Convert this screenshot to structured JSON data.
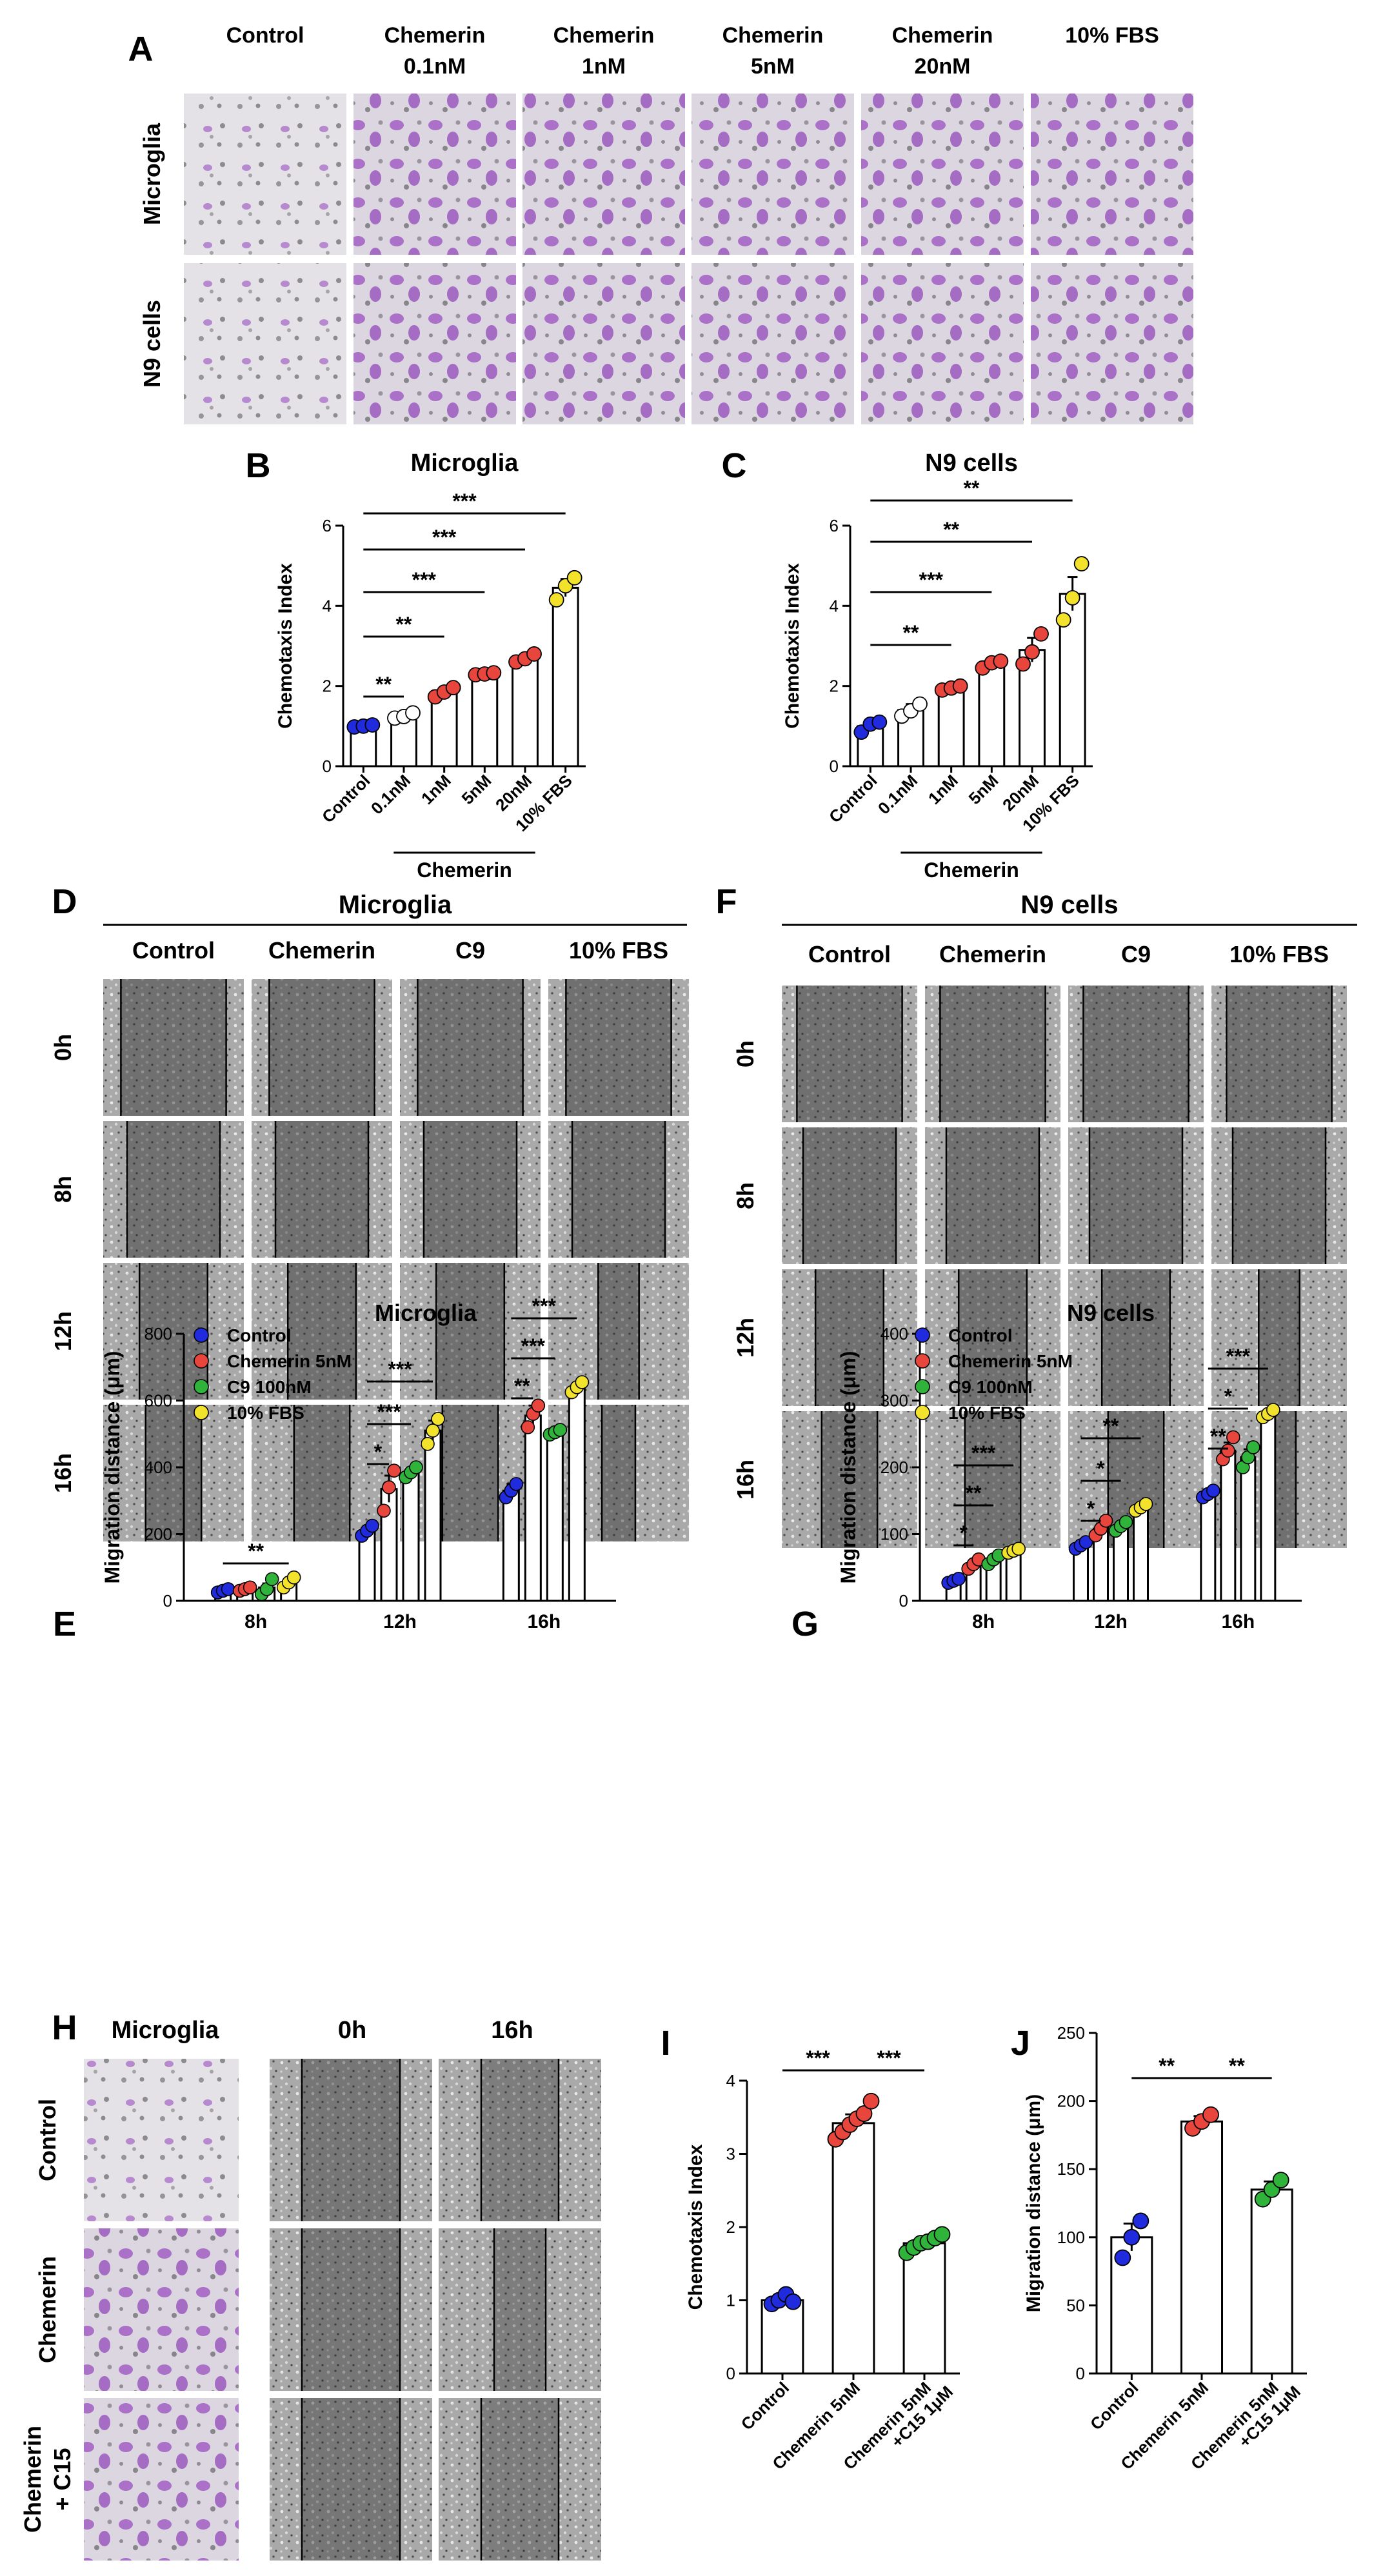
{
  "panels": {
    "A": {
      "letter": "A",
      "columns": [
        "Control",
        "Chemerin 0.1nM",
        "Chemerin 1nM",
        "Chemerin 5nM",
        "Chemerin 20nM",
        "10% FBS"
      ],
      "column_line1": [
        "Control",
        "Chemerin",
        "Chemerin",
        "Chemerin",
        "Chemerin",
        "10% FBS"
      ],
      "column_line2": [
        "",
        "0.1nM",
        "1nM",
        "5nM",
        "20nM",
        ""
      ],
      "rows": [
        "Microglia",
        "N9 cells"
      ]
    },
    "D": {
      "letter": "D",
      "title": "Microglia",
      "columns": [
        "Control",
        "Chemerin",
        "C9",
        "10% FBS"
      ],
      "rows": [
        "0h",
        "8h",
        "12h",
        "16h"
      ]
    },
    "F": {
      "letter": "F",
      "title": "N9 cells",
      "columns": [
        "Control",
        "Chemerin",
        "C9",
        "10% FBS"
      ],
      "rows": [
        "0h",
        "8h",
        "12h",
        "16h"
      ]
    },
    "H": {
      "letter": "H",
      "headers": [
        "Microglia",
        "0h",
        "16h"
      ],
      "rows": [
        "Control",
        "Chemerin",
        "Chemerin\n+ C15"
      ]
    }
  },
  "colors": {
    "blue": "#1f2bdc",
    "red": "#e8453c",
    "green": "#2fb33a",
    "yellow": "#f3e22c",
    "white": "#ffffff"
  },
  "chart_data": [
    {
      "id": "B",
      "letter": "B",
      "type": "bar",
      "title": "Microglia",
      "categories": [
        "Control",
        "0.1nM",
        "1nM",
        "5nM",
        "20nM",
        "10% FBS"
      ],
      "values": [
        1.0,
        1.25,
        1.85,
        2.3,
        2.7,
        4.45
      ],
      "errors": [
        0.05,
        0.06,
        0.12,
        0.04,
        0.1,
        0.22
      ],
      "points": [
        [
          0.98,
          1.0,
          1.03
        ],
        [
          1.2,
          1.24,
          1.33
        ],
        [
          1.73,
          1.85,
          1.96
        ],
        [
          2.28,
          2.3,
          2.33
        ],
        [
          2.6,
          2.68,
          2.8
        ],
        [
          4.15,
          4.5,
          4.7
        ]
      ],
      "point_colors": [
        "blue",
        "white",
        "red",
        "red",
        "red",
        "yellow"
      ],
      "ylabel": "Chemotaxis Index",
      "ylim": [
        0,
        6
      ],
      "yticks": [
        0,
        2,
        4,
        6
      ],
      "group_label": "Chemerin",
      "significance": [
        {
          "from": 0,
          "to": 1,
          "label": "**"
        },
        {
          "from": 0,
          "to": 2,
          "label": "**"
        },
        {
          "from": 0,
          "to": 3,
          "label": "***"
        },
        {
          "from": 0,
          "to": 4,
          "label": "***"
        },
        {
          "from": 0,
          "to": 5,
          "label": "***"
        }
      ]
    },
    {
      "id": "C",
      "letter": "C",
      "type": "bar",
      "title": "N9 cells",
      "categories": [
        "Control",
        "0.1nM",
        "1nM",
        "5nM",
        "20nM",
        "10% FBS"
      ],
      "values": [
        1.0,
        1.4,
        1.95,
        2.55,
        2.9,
        4.3
      ],
      "errors": [
        0.12,
        0.15,
        0.07,
        0.08,
        0.3,
        0.42
      ],
      "points": [
        [
          0.85,
          1.05,
          1.1
        ],
        [
          1.25,
          1.38,
          1.55
        ],
        [
          1.9,
          1.95,
          2.0
        ],
        [
          2.45,
          2.58,
          2.62
        ],
        [
          2.55,
          2.85,
          3.3
        ],
        [
          3.65,
          4.2,
          5.05
        ]
      ],
      "point_colors": [
        "blue",
        "white",
        "red",
        "red",
        "red",
        "yellow"
      ],
      "ylabel": "Chemotaxis Index",
      "ylim": [
        0,
        6
      ],
      "yticks": [
        0,
        2,
        4,
        6
      ],
      "group_label": "Chemerin",
      "significance": [
        {
          "from": 0,
          "to": 2,
          "label": "**"
        },
        {
          "from": 0,
          "to": 3,
          "label": "***"
        },
        {
          "from": 0,
          "to": 4,
          "label": "**"
        },
        {
          "from": 0,
          "to": 5,
          "label": "**"
        }
      ]
    },
    {
      "id": "E",
      "letter": "E",
      "type": "bar",
      "title": "Microglia",
      "categories": [
        "8h",
        "12h",
        "16h"
      ],
      "series": [
        {
          "name": "Control",
          "color": "blue",
          "values": [
            30,
            210,
            330
          ],
          "errors": [
            3,
            15,
            20
          ],
          "points": [
            [
              25,
              30,
              35
            ],
            [
              195,
              210,
              225
            ],
            [
              310,
              330,
              350
            ]
          ]
        },
        {
          "name": "Chemerin 5nM",
          "color": "red",
          "values": [
            35,
            335,
            555
          ],
          "errors": [
            5,
            40,
            30
          ],
          "points": [
            [
              30,
              35,
              40
            ],
            [
              270,
              340,
              390
            ],
            [
              520,
              560,
              585
            ]
          ]
        },
        {
          "name": "C9 100nM",
          "color": "green",
          "values": [
            40,
            385,
            505
          ],
          "errors": [
            12,
            12,
            6
          ],
          "points": [
            [
              20,
              35,
              65
            ],
            [
              370,
              385,
              400
            ],
            [
              498,
              505,
              512
            ]
          ]
        },
        {
          "name": "10% FBS",
          "color": "yellow",
          "values": [
            55,
            510,
            640
          ],
          "errors": [
            10,
            30,
            12
          ],
          "points": [
            [
              40,
              55,
              70
            ],
            [
              470,
              510,
              545
            ],
            [
              625,
              640,
              655
            ]
          ]
        }
      ],
      "ylabel": "Migration distance (μm)",
      "ylim": [
        0,
        800
      ],
      "yticks": [
        0,
        200,
        400,
        600,
        800
      ],
      "significance": [
        {
          "group": 0,
          "from": 0,
          "to": 3,
          "label": "**"
        },
        {
          "group": 1,
          "from": 0,
          "to": 1,
          "label": "*"
        },
        {
          "group": 1,
          "from": 0,
          "to": 2,
          "label": "***"
        },
        {
          "group": 1,
          "from": 0,
          "to": 3,
          "label": "***"
        },
        {
          "group": 2,
          "from": 0,
          "to": 1,
          "label": "**"
        },
        {
          "group": 2,
          "from": 0,
          "to": 2,
          "label": "***"
        },
        {
          "group": 2,
          "from": 0,
          "to": 3,
          "label": "***"
        }
      ]
    },
    {
      "id": "G",
      "letter": "G",
      "type": "bar",
      "title": "N9 cells",
      "categories": [
        "8h",
        "12h",
        "16h"
      ],
      "series": [
        {
          "name": "Control",
          "color": "blue",
          "values": [
            30,
            83,
            160
          ],
          "errors": [
            3,
            5,
            4
          ],
          "points": [
            [
              27,
              30,
              33
            ],
            [
              78,
              83,
              88
            ],
            [
              155,
              160,
              165
            ]
          ]
        },
        {
          "name": "Chemerin 5nM",
          "color": "red",
          "values": [
            55,
            108,
            225
          ],
          "errors": [
            5,
            8,
            12
          ],
          "points": [
            [
              48,
              55,
              62
            ],
            [
              98,
              108,
              120
            ],
            [
              212,
              225,
              245
            ]
          ]
        },
        {
          "name": "C9 100nM",
          "color": "green",
          "values": [
            62,
            112,
            215
          ],
          "errors": [
            5,
            5,
            12
          ],
          "points": [
            [
              55,
              62,
              68
            ],
            [
              105,
              112,
              118
            ],
            [
              200,
              215,
              230
            ]
          ]
        },
        {
          "name": "10% FBS",
          "color": "yellow",
          "values": [
            75,
            140,
            280
          ],
          "errors": [
            3,
            5,
            4
          ],
          "points": [
            [
              72,
              75,
              78
            ],
            [
              135,
              140,
              145
            ],
            [
              275,
              280,
              286
            ]
          ]
        }
      ],
      "ylabel": "Migration distance (μm)",
      "ylim": [
        0,
        400
      ],
      "yticks": [
        0,
        100,
        200,
        300,
        400
      ],
      "significance": [
        {
          "group": 0,
          "from": 0,
          "to": 1,
          "label": "*"
        },
        {
          "group": 0,
          "from": 0,
          "to": 2,
          "label": "**"
        },
        {
          "group": 0,
          "from": 0,
          "to": 3,
          "label": "***"
        },
        {
          "group": 1,
          "from": 0,
          "to": 1,
          "label": "*"
        },
        {
          "group": 1,
          "from": 0,
          "to": 2,
          "label": "*"
        },
        {
          "group": 1,
          "from": 0,
          "to": 3,
          "label": "**"
        },
        {
          "group": 2,
          "from": 0,
          "to": 1,
          "label": "**"
        },
        {
          "group": 2,
          "from": 0,
          "to": 2,
          "label": "*"
        },
        {
          "group": 2,
          "from": 0,
          "to": 3,
          "label": "***"
        }
      ]
    },
    {
      "id": "I",
      "letter": "I",
      "type": "bar",
      "title": "",
      "categories": [
        "Control",
        "Chemerin 5nM",
        "Chemerin 5nM\n+C15 1μM"
      ],
      "values": [
        1.0,
        3.42,
        1.78
      ],
      "errors": [
        0.05,
        0.12,
        0.06
      ],
      "points": [
        [
          0.95,
          1.0,
          1.08,
          0.98
        ],
        [
          3.2,
          3.3,
          3.4,
          3.48,
          3.55,
          3.72
        ],
        [
          1.65,
          1.72,
          1.78,
          1.8,
          1.85,
          1.9
        ]
      ],
      "point_colors": [
        "blue",
        "red",
        "green"
      ],
      "ylabel": "Chemotaxis Index",
      "ylim": [
        0,
        4
      ],
      "yticks": [
        0,
        1,
        2,
        3,
        4
      ],
      "significance": [
        {
          "from": 0,
          "to": 1,
          "label": "***"
        },
        {
          "from": 1,
          "to": 2,
          "label": "***"
        }
      ]
    },
    {
      "id": "J",
      "letter": "J",
      "type": "bar",
      "title": "",
      "categories": [
        "Control",
        "Chemerin 5nM",
        "Chemerin 5nM\n+C15 1μM"
      ],
      "values": [
        100,
        185,
        135
      ],
      "errors": [
        10,
        4,
        6
      ],
      "points": [
        [
          85,
          100,
          112
        ],
        [
          180,
          185,
          190
        ],
        [
          128,
          135,
          142
        ]
      ],
      "point_colors": [
        "blue",
        "red",
        "green"
      ],
      "ylabel": "Migration distance (μm)",
      "ylim": [
        0,
        250
      ],
      "yticks": [
        0,
        50,
        100,
        150,
        200,
        250
      ],
      "significance": [
        {
          "from": 0,
          "to": 1,
          "label": "**"
        },
        {
          "from": 1,
          "to": 2,
          "label": "**"
        }
      ]
    }
  ]
}
